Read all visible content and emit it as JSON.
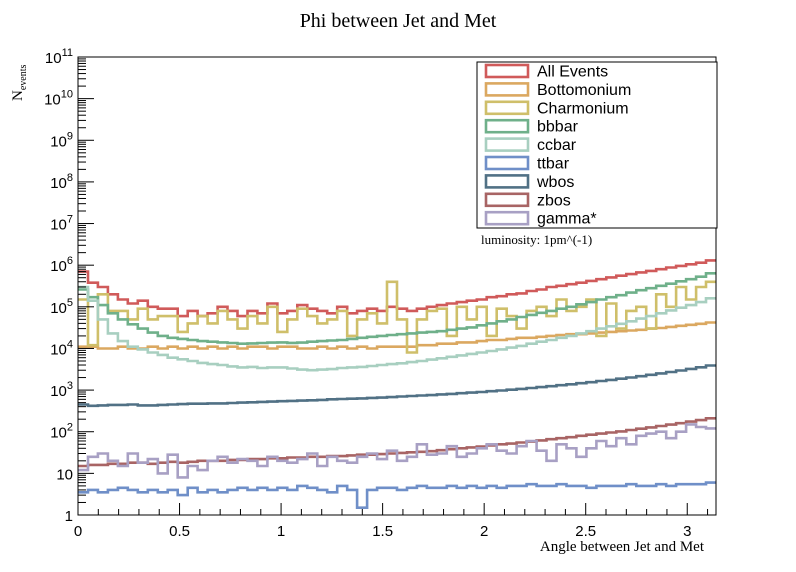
{
  "chart_data": {
    "type": "line",
    "title": "Phi between Jet and Met",
    "xlabel": "Angle between Jet and Met",
    "ylabel": "N",
    "ylabel_sub": "events",
    "xlim": [
      0,
      3.14159
    ],
    "ylim": [
      1,
      100000000000
    ],
    "log_y": true,
    "grid": false,
    "legend_position": "top-right",
    "annotation": "luminosity: 1pm^(-1)",
    "x_ticks": [
      "0",
      "0.5",
      "1",
      "1.5",
      "2",
      "2.5",
      "3"
    ],
    "x_tick_values": [
      0,
      0.5,
      1,
      1.5,
      2,
      2.5,
      3
    ],
    "y_ticks": [
      {
        "value": 1,
        "base": "1",
        "exp": ""
      },
      {
        "value": 10,
        "base": "10",
        "exp": ""
      },
      {
        "value": 100,
        "base": "10",
        "exp": "2"
      },
      {
        "value": 1000,
        "base": "10",
        "exp": "3"
      },
      {
        "value": 10000,
        "base": "10",
        "exp": "4"
      },
      {
        "value": 100000,
        "base": "10",
        "exp": "5"
      },
      {
        "value": 1000000,
        "base": "10",
        "exp": "6"
      },
      {
        "value": 10000000,
        "base": "10",
        "exp": "7"
      },
      {
        "value": 100000000,
        "base": "10",
        "exp": "8"
      },
      {
        "value": 1000000000,
        "base": "10",
        "exp": "9"
      },
      {
        "value": 10000000000,
        "base": "10",
        "exp": "10"
      },
      {
        "value": 100000000000,
        "base": "10",
        "exp": "11"
      }
    ],
    "bins": 64,
    "series": [
      {
        "name": "All Events",
        "color": "#d05a5a",
        "values": [
          700000,
          380000,
          300000,
          200000,
          150000,
          120000,
          140000,
          100000,
          90000,
          90000,
          60000,
          80000,
          60000,
          70000,
          100000,
          80000,
          60000,
          80000,
          70000,
          120000,
          70000,
          80000,
          110000,
          90000,
          80000,
          70000,
          100000,
          70000,
          80000,
          90000,
          80000,
          100000,
          90000,
          80000,
          90000,
          100000,
          110000,
          120000,
          130000,
          140000,
          150000,
          170000,
          180000,
          200000,
          210000,
          240000,
          260000,
          300000,
          320000,
          350000,
          380000,
          420000,
          460000,
          510000,
          560000,
          610000,
          670000,
          730000,
          800000,
          880000,
          960000,
          1050000,
          1150000,
          1300000
        ]
      },
      {
        "name": "Bottomonium",
        "color": "#dba860",
        "values": [
          11000,
          11000,
          10000,
          10000,
          11000,
          10000,
          10000,
          11000,
          10000,
          11000,
          10000,
          11000,
          10000,
          11000,
          10000,
          11000,
          10000,
          11000,
          11000,
          10000,
          11000,
          11000,
          10000,
          10000,
          11000,
          10000,
          11000,
          10000,
          11000,
          10000,
          11000,
          11000,
          11000,
          11000,
          12000,
          12000,
          13000,
          13000,
          14000,
          14000,
          15000,
          16000,
          16000,
          17000,
          18000,
          18000,
          19000,
          20000,
          21000,
          22000,
          22000,
          23000,
          24000,
          25000,
          26000,
          27000,
          28000,
          30000,
          31000,
          33000,
          35000,
          37000,
          39000,
          42000
        ]
      },
      {
        "name": "Charmonium",
        "color": "#cfbf6a",
        "values": [
          150000,
          12000,
          200000,
          80000,
          80000,
          50000,
          90000,
          50000,
          60000,
          60000,
          25000,
          40000,
          60000,
          40000,
          80000,
          50000,
          30000,
          60000,
          40000,
          100000,
          25000,
          50000,
          90000,
          60000,
          40000,
          50000,
          80000,
          20000,
          50000,
          70000,
          40000,
          400000,
          50000,
          8000,
          50000,
          80000,
          90000,
          20000,
          100000,
          50000,
          100000,
          20000,
          90000,
          60000,
          30000,
          80000,
          100000,
          60000,
          150000,
          80000,
          100000,
          150000,
          20000,
          120000,
          30000,
          80000,
          100000,
          30000,
          200000,
          100000,
          300000,
          150000,
          300000,
          400000
        ]
      },
      {
        "name": "bbbar",
        "color": "#6fb08a",
        "values": [
          260000,
          170000,
          110000,
          70000,
          50000,
          38000,
          30000,
          24000,
          20000,
          18000,
          17000,
          16000,
          15000,
          14500,
          14000,
          13500,
          13000,
          13200,
          13500,
          13800,
          14000,
          13600,
          13800,
          14500,
          15000,
          15500,
          16000,
          17000,
          18000,
          19000,
          20000,
          21000,
          22000,
          23000,
          24000,
          25000,
          26000,
          28000,
          30000,
          32000,
          36000,
          40000,
          45000,
          50000,
          57000,
          64000,
          72000,
          80000,
          90000,
          100000,
          115000,
          130000,
          150000,
          170000,
          190000,
          220000,
          250000,
          280000,
          320000,
          360000,
          410000,
          460000,
          530000,
          640000
        ]
      },
      {
        "name": "ccbar",
        "color": "#a8cfc0",
        "values": [
          300000,
          140000,
          50000,
          23000,
          15000,
          11000,
          9500,
          8000,
          7000,
          6000,
          5500,
          5000,
          4500,
          4200,
          4000,
          3700,
          3500,
          3600,
          3400,
          3500,
          3500,
          3300,
          3100,
          3000,
          3100,
          3200,
          3400,
          3500,
          3600,
          3800,
          4000,
          4200,
          4400,
          4700,
          5000,
          5400,
          5800,
          6300,
          6800,
          7400,
          8000,
          8700,
          9500,
          10500,
          11500,
          13000,
          14500,
          16000,
          18000,
          20000,
          23000,
          26000,
          30000,
          34000,
          39000,
          45000,
          52000,
          60000,
          70000,
          82000,
          95000,
          110000,
          130000,
          160000
        ]
      },
      {
        "name": "ttbar",
        "color": "#6f8fc8",
        "values": [
          3.5,
          4,
          3.5,
          4,
          4.5,
          4,
          3.5,
          4,
          3.5,
          4,
          3,
          4.5,
          3.5,
          4,
          3.5,
          4,
          4.5,
          4,
          4.5,
          4,
          4.5,
          4,
          5,
          4.5,
          4,
          3.5,
          5,
          4,
          1.5,
          4,
          4.5,
          4.5,
          4,
          4.5,
          5,
          4.5,
          4.5,
          5,
          4.5,
          5,
          4.5,
          5,
          4.5,
          5,
          5,
          5.5,
          5,
          5,
          5.5,
          5,
          5,
          4.5,
          5,
          5,
          5,
          5.5,
          5,
          5,
          5.5,
          5,
          5.5,
          5.5,
          5.5,
          6
        ]
      },
      {
        "name": "wbos",
        "color": "#517185",
        "values": [
          450,
          420,
          430,
          440,
          440,
          450,
          430,
          430,
          440,
          450,
          460,
          470,
          470,
          480,
          480,
          490,
          500,
          510,
          520,
          530,
          540,
          550,
          560,
          570,
          580,
          600,
          610,
          620,
          630,
          650,
          660,
          680,
          700,
          720,
          740,
          760,
          790,
          810,
          840,
          870,
          900,
          940,
          980,
          1020,
          1070,
          1120,
          1180,
          1240,
          1310,
          1380,
          1460,
          1550,
          1650,
          1760,
          1880,
          2010,
          2160,
          2330,
          2510,
          2720,
          2950,
          3220,
          3530,
          3900
        ]
      },
      {
        "name": "zbos",
        "color": "#a86464",
        "values": [
          15,
          16,
          16,
          17,
          17,
          18,
          18,
          17,
          18,
          19,
          18,
          19,
          20,
          20,
          20,
          21,
          21,
          22,
          22,
          23,
          23,
          24,
          24,
          25,
          25,
          26,
          26,
          27,
          28,
          28,
          29,
          30,
          31,
          32,
          33,
          34,
          36,
          38,
          40,
          42,
          44,
          47,
          50,
          52,
          55,
          58,
          62,
          66,
          70,
          74,
          80,
          85,
          90,
          96,
          102,
          110,
          118,
          127,
          137,
          148,
          160,
          175,
          190,
          210
        ]
      },
      {
        "name": "gamma*",
        "color": "#a8a0c4",
        "values": [
          12,
          25,
          30,
          20,
          15,
          30,
          18,
          22,
          10,
          28,
          8,
          15,
          12,
          20,
          25,
          18,
          22,
          20,
          15,
          25,
          20,
          18,
          22,
          30,
          15,
          25,
          20,
          18,
          25,
          30,
          22,
          35,
          20,
          25,
          50,
          28,
          30,
          45,
          25,
          30,
          40,
          50,
          35,
          30,
          45,
          60,
          35,
          20,
          50,
          40,
          25,
          40,
          60,
          45,
          70,
          50,
          80,
          90,
          100,
          70,
          100,
          150,
          130,
          120
        ]
      }
    ]
  }
}
